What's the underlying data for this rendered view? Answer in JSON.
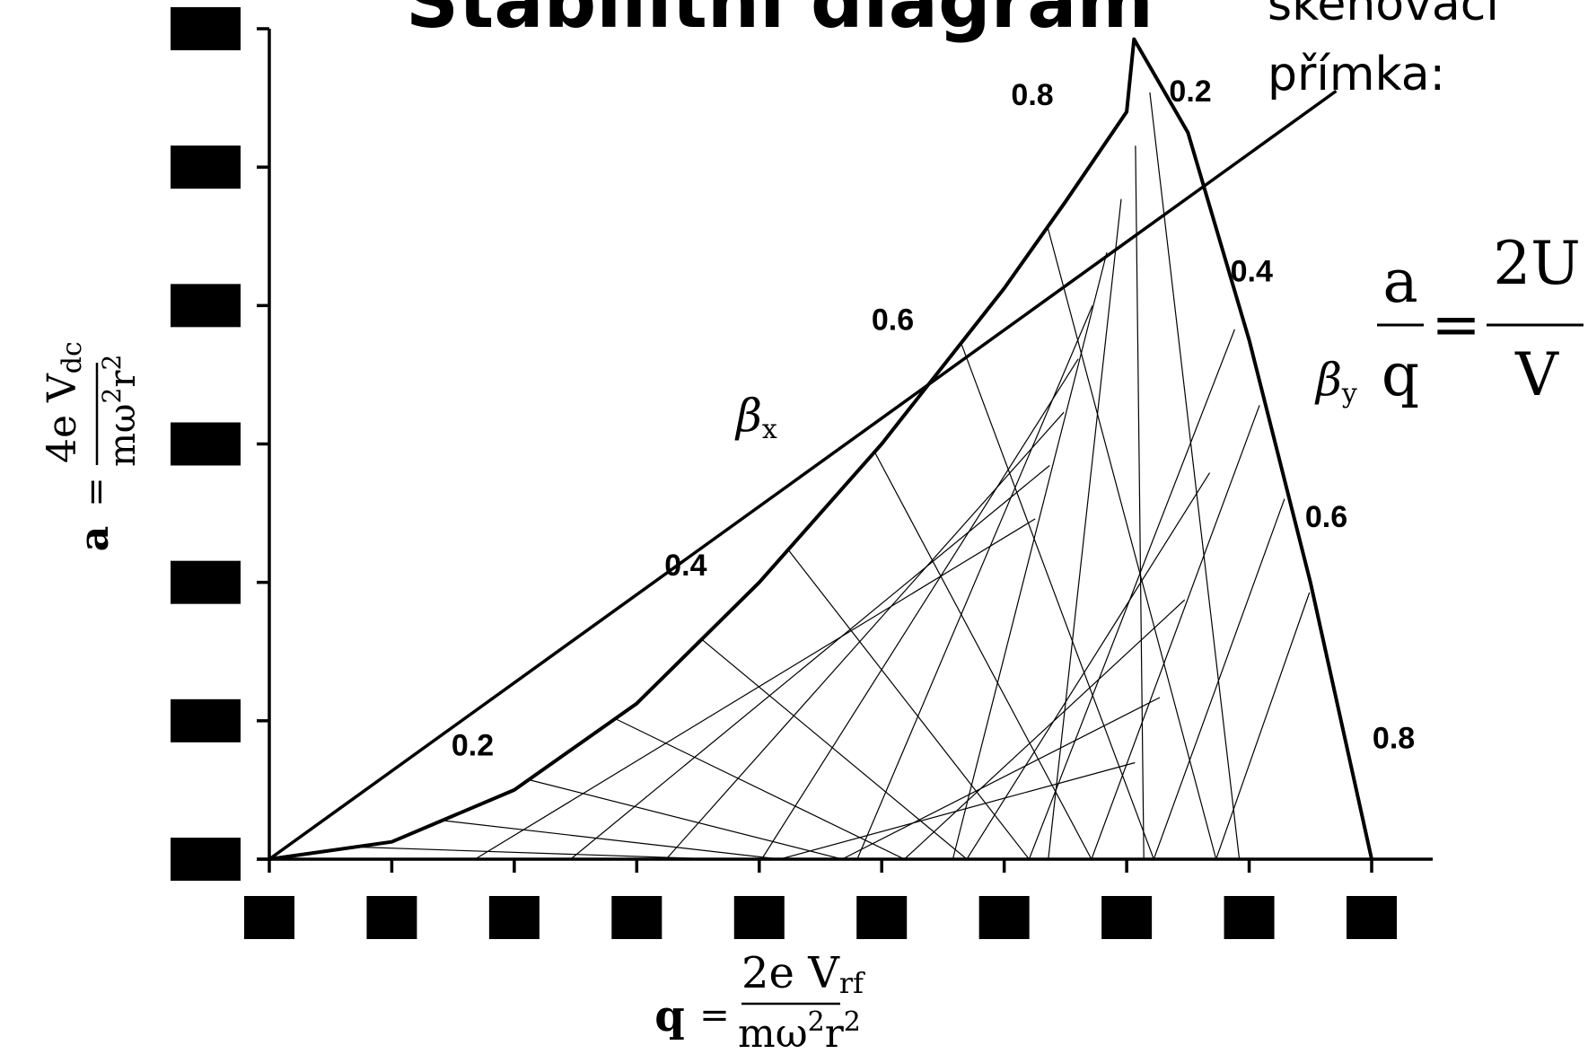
{
  "title": "Stabilitní diagram",
  "scan_line_label": [
    "skenovací",
    "přímka:"
  ],
  "equation": {
    "lhs_num": "a",
    "lhs_den": "q",
    "equals": "=",
    "rhs_num": "2U",
    "rhs_den": "V"
  },
  "beta_x": {
    "symbol": "β",
    "sub": "x"
  },
  "beta_y": {
    "symbol": "β",
    "sub": "y"
  },
  "axis_x": {
    "label_lhs": "q",
    "equals": "=",
    "num_a": "2e V",
    "num_sub": "rf",
    "den_a": "mω",
    "den_sup1": "2",
    "den_b": "r",
    "den_sup2": "2"
  },
  "axis_y": {
    "label_lhs": "a",
    "equals": "=",
    "num_a": "4e V",
    "num_sub": "dc",
    "den_a": "mω",
    "den_sup1": "2",
    "den_b": "r",
    "den_sup2": "2"
  },
  "chart_data": {
    "type": "line",
    "title": "Stabilitní diagram",
    "xlabel": "q = 2eVrf / mω²r²",
    "ylabel": "a = 4eVdc / mω²r²",
    "xlim": [
      0,
      0.9
    ],
    "ylim": [
      0,
      0.24
    ],
    "x_ticks": [
      0,
      0.1,
      0.2,
      0.3,
      0.4,
      0.5,
      0.6,
      0.7,
      0.8,
      0.9
    ],
    "y_ticks": [
      0,
      0.04,
      0.08,
      0.12,
      0.16,
      0.2,
      0.24
    ],
    "tick_labels_redacted": true,
    "grid": false,
    "series": [
      {
        "boundary": "beta_x_0",
        "points": [
          [
            0,
            0
          ],
          [
            0.1,
            0.005
          ],
          [
            0.2,
            0.02
          ],
          [
            0.3,
            0.045
          ],
          [
            0.4,
            0.08
          ],
          [
            0.5,
            0.12
          ],
          [
            0.6,
            0.165
          ],
          [
            0.65,
            0.19
          ],
          [
            0.7,
            0.216
          ],
          [
            0.706,
            0.237
          ]
        ]
      },
      {
        "boundary": "beta_y_1",
        "points": [
          [
            0.706,
            0.237
          ],
          [
            0.75,
            0.21
          ],
          [
            0.8,
            0.15
          ],
          [
            0.85,
            0.08
          ],
          [
            0.9,
            0.0
          ]
        ]
      },
      {
        "name": "skenovací přímka",
        "points": [
          [
            0,
            0
          ],
          [
            0.871,
            0.222
          ]
        ]
      }
    ],
    "iso_beta_x_labels": [
      {
        "label": "0.2",
        "x": 0.166,
        "y": 0.03
      },
      {
        "label": "0.4",
        "x": 0.34,
        "y": 0.082
      },
      {
        "label": "0.6",
        "x": 0.509,
        "y": 0.153
      },
      {
        "label": "0.8",
        "x": 0.623,
        "y": 0.218
      }
    ],
    "iso_beta_y_labels": [
      {
        "label": "0.2",
        "x": 0.752,
        "y": 0.219
      },
      {
        "label": "0.4",
        "x": 0.802,
        "y": 0.167
      },
      {
        "label": "0.6",
        "x": 0.863,
        "y": 0.096
      },
      {
        "label": "0.8",
        "x": 0.918,
        "y": 0.032
      }
    ]
  }
}
